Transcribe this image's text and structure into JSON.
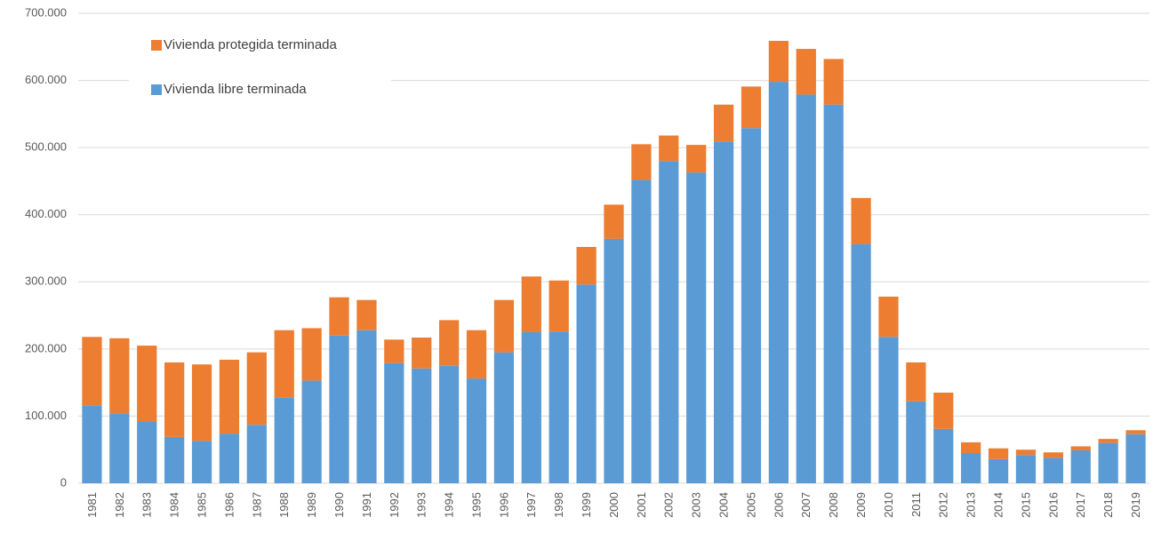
{
  "chart_data": {
    "type": "stacked_bar",
    "categories": [
      "1981",
      "1982",
      "1983",
      "1984",
      "1985",
      "1986",
      "1987",
      "1988",
      "1989",
      "1990",
      "1991",
      "1992",
      "1993",
      "1994",
      "1995",
      "1996",
      "1997",
      "1998",
      "1999",
      "2000",
      "2001",
      "2002",
      "2003",
      "2004",
      "2005",
      "2006",
      "2007",
      "2008",
      "2009",
      "2010",
      "2011",
      "2012",
      "2013",
      "2014",
      "2015",
      "2016",
      "2017",
      "2018",
      "2019"
    ],
    "series": [
      {
        "name": "Vivienda libre terminada",
        "color": "#5b9bd5",
        "values": [
          116000,
          104000,
          92000,
          69000,
          63000,
          74000,
          87000,
          128000,
          153000,
          220000,
          228000,
          179000,
          171000,
          175000,
          156000,
          195000,
          225000,
          226000,
          296000,
          364000,
          452000,
          480000,
          463000,
          509000,
          529000,
          598000,
          579000,
          564000,
          356000,
          218000,
          122000,
          81000,
          45000,
          36000,
          42000,
          38000,
          49000,
          60000,
          73000
        ]
      },
      {
        "name": "Vivienda protegida terminada",
        "color": "#ed7d31",
        "values": [
          102000,
          112000,
          113000,
          111000,
          114000,
          110000,
          108000,
          100000,
          78000,
          57000,
          45000,
          35000,
          46000,
          68000,
          72000,
          78000,
          83000,
          76000,
          56000,
          51000,
          53000,
          38000,
          41000,
          55000,
          62000,
          61000,
          68000,
          68000,
          69000,
          60000,
          58000,
          54000,
          16000,
          16000,
          8000,
          8000,
          6000,
          6000,
          6000
        ]
      }
    ],
    "ylim": [
      0,
      700000
    ],
    "yticks": [
      0,
      {
        "value": 100000,
        "label": "100.000"
      },
      {
        "value": 200000,
        "label": "200.000"
      },
      {
        "value": 300000,
        "label": "300.000"
      },
      {
        "value": 400000,
        "label": "400.000"
      },
      {
        "value": 500000,
        "label": "500.000"
      },
      {
        "value": 600000,
        "label": "600.000"
      },
      {
        "value": 700000,
        "label": "700.000"
      }
    ],
    "grid": true,
    "legend": "upper left"
  }
}
